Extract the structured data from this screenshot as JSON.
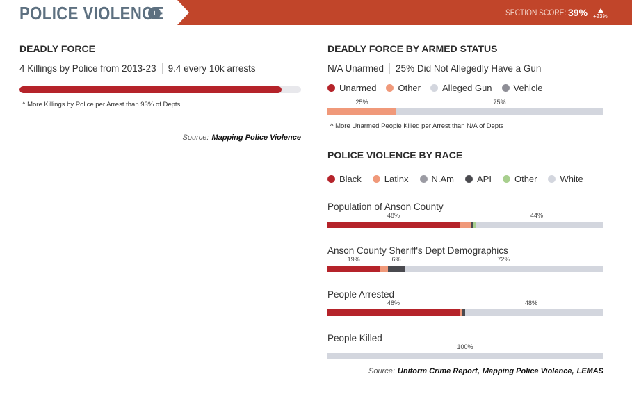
{
  "header": {
    "title": "POLICE VIOLENCE",
    "info": "i",
    "score_label": "SECTION SCORE:",
    "score": "39%",
    "change": "+23%"
  },
  "deadly_force": {
    "title": "DEADLY FORCE",
    "stats": [
      "4 Killings by Police from 2013-23",
      "9.4 every 10k arrests"
    ],
    "bar": {
      "value": 93,
      "xlim": [
        0,
        100
      ],
      "color": "#b5232a"
    },
    "note": "^ More Killings by Police per Arrest than 93% of Depts",
    "source": {
      "label": "Source:",
      "links": [
        "Mapping Police Violence"
      ]
    }
  },
  "armed_status": {
    "title": "DEADLY FORCE BY ARMED STATUS",
    "stats": [
      "N/A Unarmed",
      "25% Did Not Allegedly Have a Gun"
    ],
    "legend": [
      {
        "name": "Unarmed",
        "color": "#b5232a"
      },
      {
        "name": "Other",
        "color": "#f0997a"
      },
      {
        "name": "Alleged Gun",
        "color": "#d3d6de"
      },
      {
        "name": "Vehicle",
        "color": "#8e8e96"
      }
    ],
    "bar": {
      "values": [
        0,
        25,
        75,
        0
      ],
      "value_labels": [
        null,
        "25%",
        "75%",
        null
      ],
      "xlim": [
        0,
        100
      ]
    },
    "note": "^ More Unarmed People Killed per Arrest than N/A of Depts"
  },
  "race": {
    "title": "POLICE VIOLENCE BY RACE",
    "legend": [
      {
        "name": "Black",
        "color": "#b5232a"
      },
      {
        "name": "Latinx",
        "color": "#f0997a"
      },
      {
        "name": "N.Am",
        "color": "#9b9ba3"
      },
      {
        "name": "API",
        "color": "#4a4a4f"
      },
      {
        "name": "Other",
        "color": "#a8cf8e"
      },
      {
        "name": "White",
        "color": "#d3d6de"
      }
    ],
    "xlim": [
      0,
      100
    ],
    "bars": [
      {
        "label": "Population of Anson County",
        "values": [
          48,
          4,
          0,
          1,
          1,
          44
        ],
        "value_labels": [
          "48%",
          null,
          null,
          null,
          null,
          "44%"
        ]
      },
      {
        "label": "Anson County Sheriff's Dept Demographics",
        "values": [
          19,
          3,
          0,
          6,
          0,
          72
        ],
        "value_labels": [
          "19%",
          null,
          null,
          "6%",
          null,
          "72%"
        ]
      },
      {
        "label": "People Arrested",
        "values": [
          48,
          1,
          0,
          1,
          0,
          48
        ],
        "value_labels": [
          "48%",
          null,
          null,
          null,
          null,
          "48%"
        ]
      },
      {
        "label": "People Killed",
        "values": [
          0,
          0,
          0,
          0,
          0,
          100
        ],
        "value_labels": [
          null,
          null,
          null,
          null,
          null,
          "100%"
        ]
      }
    ],
    "source": {
      "label": "Source:",
      "links": [
        "Uniform Crime Report",
        "Mapping Police Violence",
        "LEMAS"
      ],
      "separator": ","
    }
  }
}
